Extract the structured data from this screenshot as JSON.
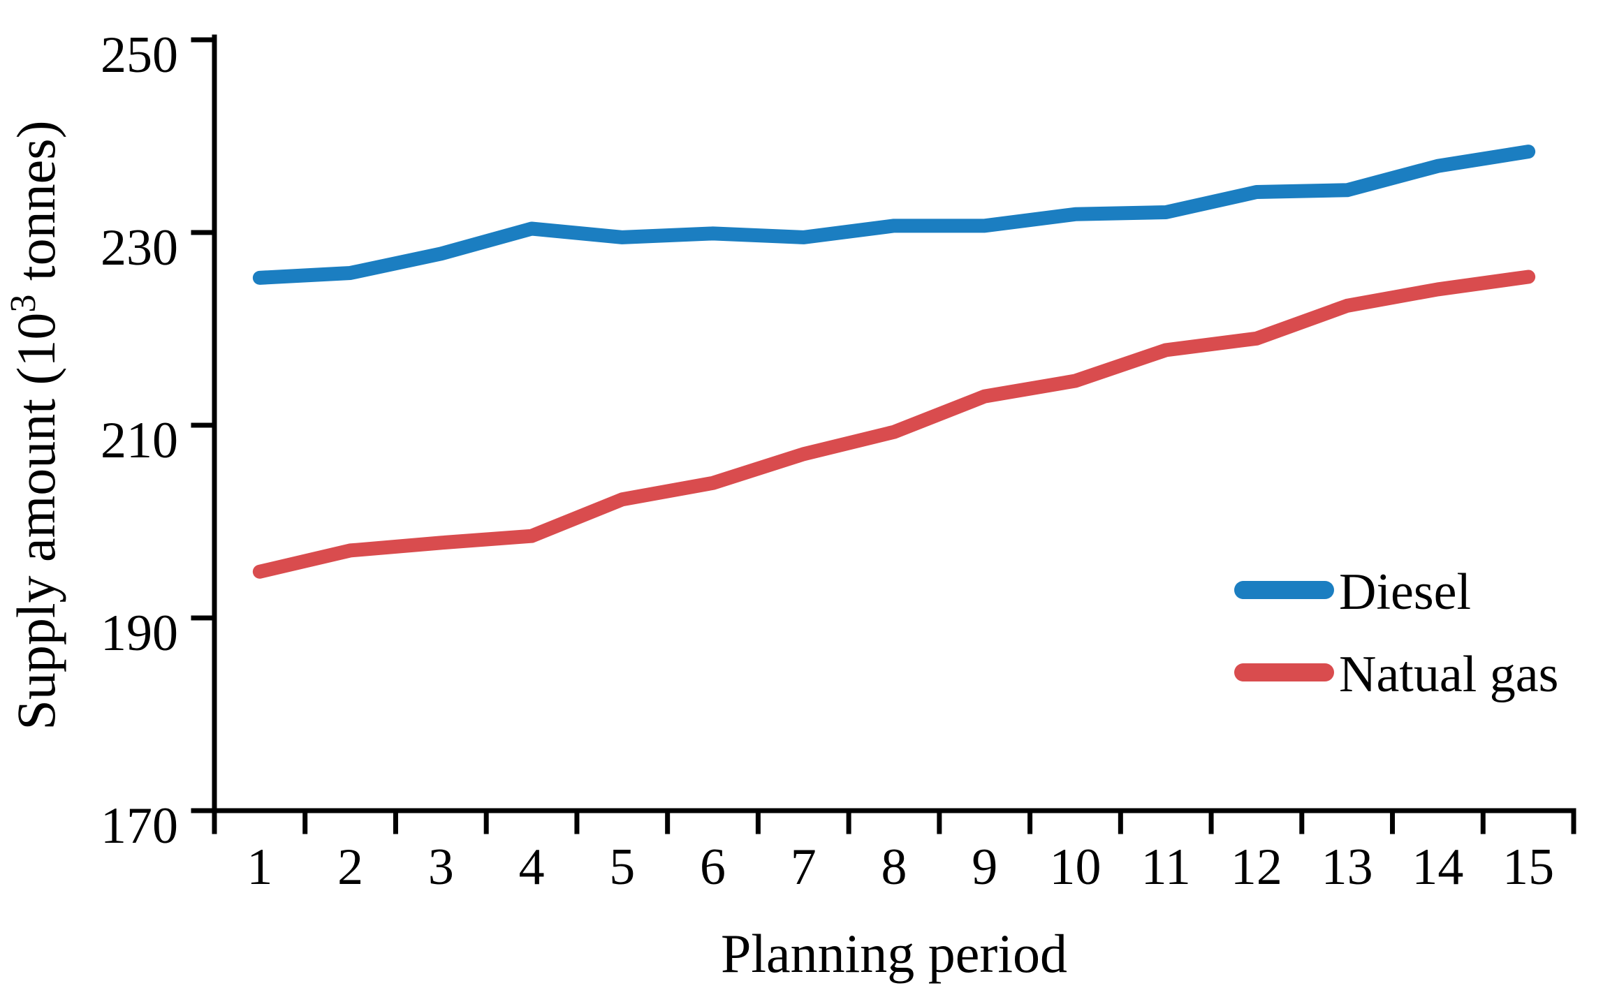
{
  "chart_data": {
    "type": "line",
    "title": "",
    "xlabel": "Planning period",
    "ylabel": "Supply amount (10³ tonnes)",
    "ylabel_parts": {
      "prefix": "Supply amount (10",
      "superscript": "3",
      "suffix": " tonnes)"
    },
    "categories": [
      1,
      2,
      3,
      4,
      5,
      6,
      7,
      8,
      9,
      10,
      11,
      12,
      13,
      14,
      15
    ],
    "series": [
      {
        "name": "Diesel",
        "color": "#1b7ec1",
        "values": [
          225.3,
          225.8,
          227.8,
          230.4,
          229.5,
          229.9,
          229.5,
          230.7,
          230.7,
          231.9,
          232.1,
          234.2,
          234.4,
          236.9,
          238.4
        ]
      },
      {
        "name": "Natual gas",
        "color": "#d94c4e",
        "values": [
          194.8,
          197.0,
          197.8,
          198.5,
          202.3,
          204.0,
          207.0,
          209.3,
          213.0,
          214.6,
          217.8,
          219.0,
          222.4,
          224.1,
          225.4
        ]
      }
    ],
    "ylim": [
      170,
      250
    ],
    "yticks": [
      170,
      190,
      210,
      230,
      250
    ],
    "grid": false,
    "legend_position": "right-middle",
    "axis_color": "#000000",
    "background_color": "#ffffff"
  }
}
